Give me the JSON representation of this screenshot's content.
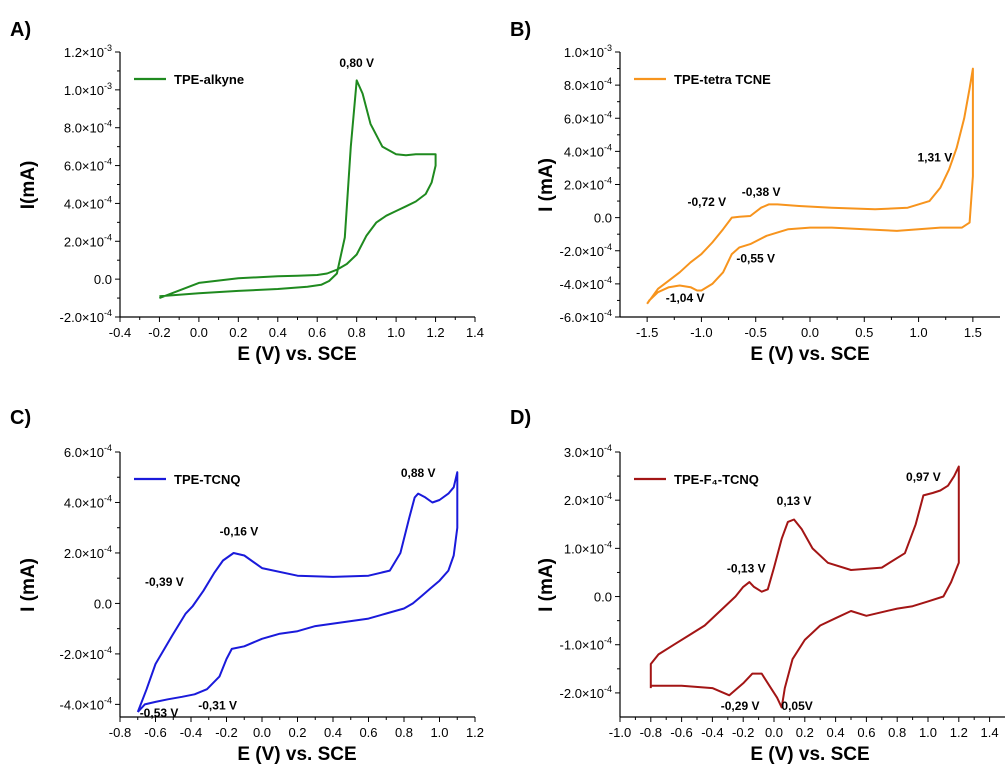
{
  "chart_data": [
    {
      "panel": "A)",
      "type": "line",
      "xlabel": "E (V) vs. SCE",
      "ylabel": "I(mA)",
      "xlim": [
        -0.4,
        1.4
      ],
      "ylim": [
        -0.0002,
        0.0012
      ],
      "x_ticks": [
        "-0.4",
        "-0.2",
        "0.0",
        "0.2",
        "0.4",
        "0.6",
        "0.8",
        "1.0",
        "1.2",
        "1.4"
      ],
      "y_ticks": [
        {
          "m": "-2.0",
          "e": "-4"
        },
        {
          "m": "0.0",
          "e": ""
        },
        {
          "m": "2.0",
          "e": "-4"
        },
        {
          "m": "4.0",
          "e": "-4"
        },
        {
          "m": "6.0",
          "e": "-4"
        },
        {
          "m": "8.0",
          "e": "-4"
        },
        {
          "m": "1.0",
          "e": "-3"
        },
        {
          "m": "1.2",
          "e": "-3"
        }
      ],
      "grid": false,
      "legend_position": "top-left",
      "color": "#1f8a1f",
      "series": [
        {
          "name": "TPE-alkyne",
          "x": [
            -0.2,
            0.0,
            0.2,
            0.4,
            0.55,
            0.62,
            0.66,
            0.7,
            0.74,
            0.77,
            0.8,
            0.83,
            0.87,
            0.93,
            1.0,
            1.05,
            1.1,
            1.15,
            1.18,
            1.2,
            1.2,
            1.18,
            1.15,
            1.1,
            1.05,
            1.0,
            0.95,
            0.9,
            0.85,
            0.8,
            0.75,
            0.7,
            0.65,
            0.6,
            0.5,
            0.4,
            0.2,
            0.0,
            -0.2
          ],
          "y": [
            -9e-05,
            -7.5e-05,
            -6.2e-05,
            -5.2e-05,
            -4e-05,
            -3e-05,
            -1e-05,
            3e-05,
            0.00022,
            0.0007,
            0.00105,
            0.00098,
            0.00082,
            0.0007,
            0.00066,
            0.000655,
            0.00066,
            0.00066,
            0.00066,
            0.00066,
            0.0006,
            0.00051,
            0.00045,
            0.00041,
            0.000385,
            0.00036,
            0.000335,
            0.0003,
            0.00023,
            0.00013,
            8e-05,
            5e-05,
            3e-05,
            2.2e-05,
            1.8e-05,
            1.5e-05,
            5e-06,
            -2e-05,
            -0.0001
          ]
        }
      ],
      "annotations": [
        {
          "text": "0,80 V",
          "x": 0.8,
          "y": 0.00112
        }
      ]
    },
    {
      "panel": "B)",
      "type": "line",
      "xlabel": "E (V) vs. SCE",
      "ylabel": "I (mA)",
      "xlim": [
        -1.75,
        1.75
      ],
      "ylim": [
        -0.0006,
        0.001
      ],
      "x_ticks": [
        "-1.5",
        "-1.0",
        "-0.5",
        "0.0",
        "0.5",
        "1.0",
        "1.5"
      ],
      "y_ticks": [
        {
          "m": "-6.0",
          "e": "-4"
        },
        {
          "m": "-4.0",
          "e": "-4"
        },
        {
          "m": "-2.0",
          "e": "-4"
        },
        {
          "m": "0.0",
          "e": ""
        },
        {
          "m": "2.0",
          "e": "-4"
        },
        {
          "m": "4.0",
          "e": "-4"
        },
        {
          "m": "6.0",
          "e": "-4"
        },
        {
          "m": "8.0",
          "e": "-4"
        },
        {
          "m": "1.0",
          "e": "-3"
        }
      ],
      "grid": false,
      "legend_position": "top-left",
      "color": "#f7941d",
      "series": [
        {
          "name": "TPE-tetra TCNE",
          "x": [
            -1.5,
            -1.4,
            -1.3,
            -1.2,
            -1.1,
            -1.0,
            -0.9,
            -0.8,
            -0.72,
            -0.65,
            -0.55,
            -0.45,
            -0.38,
            -0.3,
            -0.1,
            0.2,
            0.6,
            0.9,
            1.1,
            1.2,
            1.28,
            1.35,
            1.42,
            1.47,
            1.5,
            1.5,
            1.47,
            1.4,
            1.3,
            1.2,
            1.0,
            0.8,
            0.5,
            0.2,
            0.0,
            -0.2,
            -0.4,
            -0.55,
            -0.65,
            -0.72,
            -0.8,
            -0.9,
            -1.0,
            -1.04,
            -1.1,
            -1.2,
            -1.3,
            -1.4,
            -1.48,
            -1.5
          ],
          "y": [
            -0.00052,
            -0.00043,
            -0.00038,
            -0.00033,
            -0.00027,
            -0.00022,
            -0.00015,
            -7e-05,
            0.0,
            5e-06,
            1e-05,
            6e-05,
            8e-05,
            8e-05,
            7e-05,
            6e-05,
            5e-05,
            6e-05,
            0.0001,
            0.00018,
            0.00029,
            0.00042,
            0.0006,
            0.00078,
            0.0009,
            0.00025,
            -3e-05,
            -6e-05,
            -6e-05,
            -6e-05,
            -7e-05,
            -8e-05,
            -7e-05,
            -6e-05,
            -6e-05,
            -7e-05,
            -0.00011,
            -0.00016,
            -0.00018,
            -0.00022,
            -0.00033,
            -0.0004,
            -0.00044,
            -0.00044,
            -0.00042,
            -0.00041,
            -0.00042,
            -0.00045,
            -0.0005,
            -0.00052
          ]
        }
      ],
      "annotations": [
        {
          "text": "-0,72 V",
          "x": -0.95,
          "y": 7e-05
        },
        {
          "text": "-0,38 V",
          "x": -0.45,
          "y": 0.00013
        },
        {
          "text": "1,31 V",
          "x": 1.15,
          "y": 0.00034
        },
        {
          "text": "-0,55 V",
          "x": -0.5,
          "y": -0.00027
        },
        {
          "text": "-1,04 V",
          "x": -1.15,
          "y": -0.00051
        }
      ]
    },
    {
      "panel": "C)",
      "type": "line",
      "xlabel": "E (V) vs. SCE",
      "ylabel": "I (mA)",
      "xlim": [
        -0.8,
        1.2
      ],
      "ylim": [
        -0.00045,
        0.0006
      ],
      "x_ticks": [
        "-0.8",
        "-0.6",
        "-0.4",
        "-0.2",
        "0.0",
        "0.2",
        "0.4",
        "0.6",
        "0.8",
        "1.0",
        "1.2"
      ],
      "y_ticks": [
        {
          "m": "-4.0",
          "e": "-4"
        },
        {
          "m": "-2.0",
          "e": "-4"
        },
        {
          "m": "0.0",
          "e": ""
        },
        {
          "m": "2.0",
          "e": "-4"
        },
        {
          "m": "4.0",
          "e": "-4"
        },
        {
          "m": "6.0",
          "e": "-4"
        }
      ],
      "grid": false,
      "legend_position": "top-left",
      "color": "#1a1adb",
      "series": [
        {
          "name": "TPE-TCNQ",
          "x": [
            -0.7,
            -0.65,
            -0.6,
            -0.5,
            -0.43,
            -0.39,
            -0.33,
            -0.27,
            -0.22,
            -0.16,
            -0.1,
            0.0,
            0.2,
            0.4,
            0.6,
            0.72,
            0.78,
            0.83,
            0.86,
            0.88,
            0.92,
            0.96,
            1.0,
            1.05,
            1.08,
            1.1,
            1.1,
            1.08,
            1.05,
            1.0,
            0.95,
            0.9,
            0.85,
            0.8,
            0.75,
            0.7,
            0.6,
            0.4,
            0.3,
            0.2,
            0.1,
            0.0,
            -0.1,
            -0.17,
            -0.2,
            -0.24,
            -0.31,
            -0.38,
            -0.45,
            -0.53,
            -0.6,
            -0.66,
            -0.7
          ],
          "y": [
            -0.00043,
            -0.00034,
            -0.00024,
            -0.00012,
            -4e-05,
            -1e-05,
            5e-05,
            0.00012,
            0.00017,
            0.0002,
            0.00019,
            0.00014,
            0.00011,
            0.000105,
            0.00011,
            0.00013,
            0.0002,
            0.00034,
            0.00042,
            0.000435,
            0.00042,
            0.0004,
            0.00041,
            0.000435,
            0.00046,
            0.00052,
            0.0003,
            0.00019,
            0.00013,
            9e-05,
            6e-05,
            3e-05,
            0.0,
            -2e-05,
            -3e-05,
            -4e-05,
            -6e-05,
            -8e-05,
            -9e-05,
            -0.00011,
            -0.00012,
            -0.00014,
            -0.00017,
            -0.00018,
            -0.00022,
            -0.00029,
            -0.00034,
            -0.00036,
            -0.00037,
            -0.00038,
            -0.00039,
            -0.0004,
            -0.00043
          ]
        }
      ],
      "annotations": [
        {
          "text": "-0,16 V",
          "x": -0.13,
          "y": 0.00027
        },
        {
          "text": "0,88 V",
          "x": 0.88,
          "y": 0.0005
        },
        {
          "text": "-0,39 V",
          "x": -0.55,
          "y": 7e-05
        },
        {
          "text": "-0,53 V",
          "x": -0.58,
          "y": -0.00045
        },
        {
          "text": "-0,31 V",
          "x": -0.25,
          "y": -0.00042
        }
      ]
    },
    {
      "panel": "D)",
      "type": "line",
      "xlabel": "E (V) vs. SCE",
      "ylabel": "I (mA)",
      "xlim": [
        -1.0,
        1.5
      ],
      "ylim": [
        -0.00025,
        0.0003
      ],
      "x_ticks": [
        "-1.0",
        "-0.8",
        "-0.6",
        "-0.4",
        "-0.2",
        "0.0",
        "0.2",
        "0.4",
        "0.6",
        "0.8",
        "1.0",
        "1.2",
        "1.4"
      ],
      "y_ticks": [
        {
          "m": "-2.0",
          "e": "-4"
        },
        {
          "m": "-1.0",
          "e": "-4"
        },
        {
          "m": "0.0",
          "e": ""
        },
        {
          "m": "1.0",
          "e": "-4"
        },
        {
          "m": "2.0",
          "e": "-4"
        },
        {
          "m": "3.0",
          "e": "-4"
        }
      ],
      "grid": false,
      "legend_position": "top-left",
      "color": "#a31515",
      "series": [
        {
          "name": "TPE-F₄-TCNQ",
          "x": [
            -0.8,
            -0.8,
            -0.75,
            -0.65,
            -0.55,
            -0.45,
            -0.35,
            -0.25,
            -0.2,
            -0.16,
            -0.13,
            -0.08,
            -0.04,
            0.0,
            0.05,
            0.09,
            0.13,
            0.18,
            0.25,
            0.35,
            0.5,
            0.7,
            0.85,
            0.92,
            0.97,
            1.03,
            1.08,
            1.13,
            1.17,
            1.2,
            1.2,
            1.15,
            1.1,
            1.0,
            0.9,
            0.8,
            0.6,
            0.5,
            0.4,
            0.3,
            0.2,
            0.12,
            0.07,
            0.05,
            0.02,
            -0.02,
            -0.08,
            -0.14,
            -0.2,
            -0.29,
            -0.4,
            -0.6,
            -0.8
          ],
          "y": [
            -0.00019,
            -0.00014,
            -0.00012,
            -0.0001,
            -8e-05,
            -6e-05,
            -3e-05,
            0.0,
            2e-05,
            3e-05,
            2e-05,
            1e-05,
            1.5e-05,
            6e-05,
            0.00012,
            0.000155,
            0.00016,
            0.00014,
            0.0001,
            7e-05,
            5.5e-05,
            6e-05,
            9e-05,
            0.00015,
            0.00021,
            0.000215,
            0.00022,
            0.00023,
            0.00025,
            0.00027,
            7e-05,
            3e-05,
            0.0,
            -1e-05,
            -2e-05,
            -2.5e-05,
            -4e-05,
            -3e-05,
            -4.5e-05,
            -6e-05,
            -9e-05,
            -0.00013,
            -0.00019,
            -0.00023,
            -0.00021,
            -0.00019,
            -0.00016,
            -0.00016,
            -0.00018,
            -0.000205,
            -0.00019,
            -0.000185,
            -0.000185
          ]
        }
      ],
      "annotations": [
        {
          "text": "0,13 V",
          "x": 0.13,
          "y": 0.00019
        },
        {
          "text": "0,97 V",
          "x": 0.97,
          "y": 0.00024
        },
        {
          "text": "-0,13 V",
          "x": -0.18,
          "y": 5e-05
        },
        {
          "text": "-0,29 V",
          "x": -0.22,
          "y": -0.000235
        },
        {
          "text": "0,05V",
          "x": 0.15,
          "y": -0.000235
        }
      ]
    }
  ]
}
